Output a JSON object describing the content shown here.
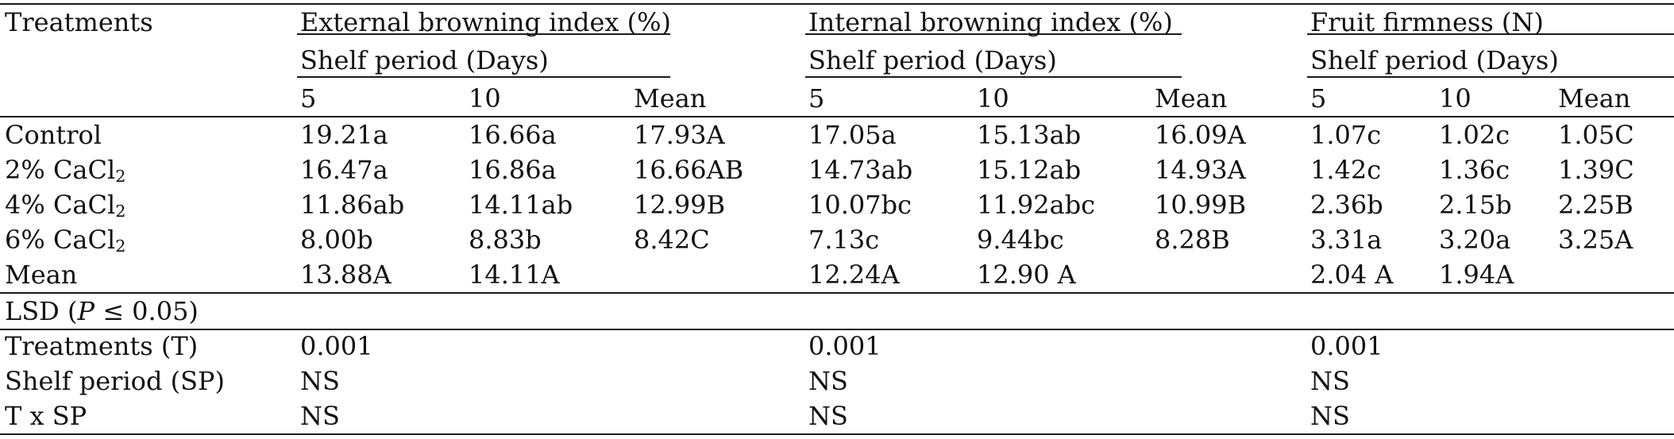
{
  "header": {
    "treatments_label": "Treatments",
    "groups": [
      {
        "title": "External browning index (%)",
        "subtitle": "Shelf period (Days)",
        "cols": [
          "5",
          "10",
          "Mean"
        ]
      },
      {
        "title": "Internal browning index (%)",
        "subtitle": "Shelf period (Days)",
        "cols": [
          "5",
          "10",
          "Mean"
        ]
      },
      {
        "title": "Fruit firmness (N)",
        "subtitle": "Shelf period (Days)",
        "cols": [
          "5",
          "10",
          "Mean"
        ]
      }
    ]
  },
  "rows": [
    {
      "label": "Control",
      "label_sub": "",
      "values": [
        "19.21a",
        "16.66a",
        "17.93A",
        "17.05a",
        "15.13ab",
        "16.09A",
        "1.07c",
        "1.02c",
        "1.05C"
      ]
    },
    {
      "label": "2% CaCl",
      "label_sub": "2",
      "values": [
        "16.47a",
        "16.86a",
        "16.66AB",
        "14.73ab",
        "15.12ab",
        "14.93A",
        "1.42c",
        "1.36c",
        "1.39C"
      ]
    },
    {
      "label": "4% CaCl",
      "label_sub": "2",
      "values": [
        "11.86ab",
        "14.11ab",
        "12.99B",
        "10.07bc",
        "11.92abc",
        "10.99B",
        "2.36b",
        "2.15b",
        "2.25B"
      ]
    },
    {
      "label": "6% CaCl",
      "label_sub": "2",
      "values": [
        "8.00b",
        "8.83b",
        "8.42C",
        " 7.13c",
        "9.44bc",
        "8.28B",
        "3.31a",
        "3.20a",
        "3.25A"
      ]
    },
    {
      "label": "Mean",
      "label_sub": "",
      "values": [
        "13.88A",
        "14.11A",
        "",
        "12.24A",
        "12.90 A",
        "",
        "2.04 A",
        "1.94A",
        ""
      ]
    }
  ],
  "lsd": {
    "label_pre": "LSD (",
    "label_p": "P",
    "label_post": " ≤ 0.05)",
    "rows": [
      {
        "label": "Treatments (T)",
        "values": [
          "0.001",
          "0.001",
          "0.001"
        ]
      },
      {
        "label": "Shelf period (SP)",
        "values": [
          "NS",
          "NS",
          "NS"
        ]
      },
      {
        "label": "T x SP",
        "values": [
          "NS",
          "NS",
          "NS"
        ]
      }
    ]
  }
}
